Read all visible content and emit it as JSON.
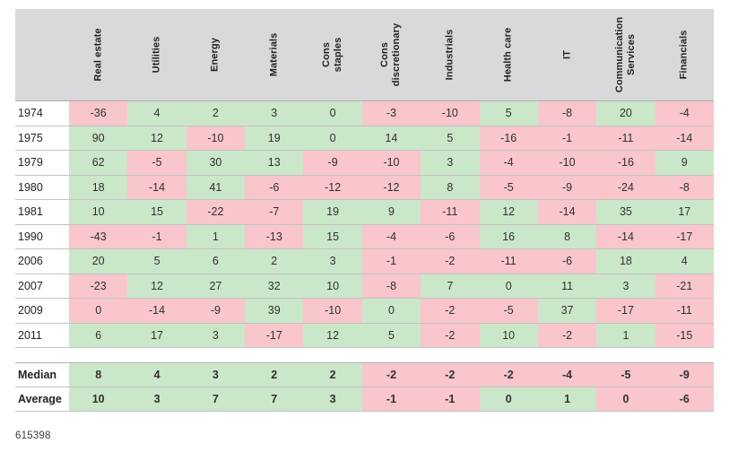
{
  "theme": {
    "positive_bg": "#cbe7ca",
    "negative_bg": "#f8c6cb",
    "header_bg": "#d9d9db",
    "grid_line": "#c2c2c4",
    "text_color": "#2e2e2e"
  },
  "footer": {
    "figure_number": "615398"
  },
  "chart_data": {
    "type": "table",
    "title": "",
    "legend": "green = highlighted positive, pink = highlighted negative",
    "columns": [
      "Real estate",
      "Utilities",
      "Energy",
      "Materials",
      "Cons staples",
      "Cons discretionary",
      "Industrials",
      "Health care",
      "IT",
      "Communication Services",
      "Financials"
    ],
    "column_labels_display": [
      "Real estate",
      "Utilities",
      "Energy",
      "Materials",
      "Cons\nstaples",
      "Cons\ndiscretionary",
      "Industrials",
      "Health care",
      "IT",
      "Communication\nServices",
      "Financials"
    ],
    "rows": [
      {
        "label": "1974",
        "values": [
          -36,
          4,
          2,
          3,
          0,
          -3,
          -10,
          5,
          -8,
          20,
          -4
        ],
        "colors": [
          "pink",
          "green",
          "green",
          "green",
          "green",
          "pink",
          "pink",
          "green",
          "pink",
          "green",
          "pink"
        ]
      },
      {
        "label": "1975",
        "values": [
          90,
          12,
          -10,
          19,
          0,
          14,
          5,
          -16,
          -1,
          -11,
          -14
        ],
        "colors": [
          "green",
          "green",
          "pink",
          "green",
          "green",
          "green",
          "green",
          "pink",
          "pink",
          "pink",
          "pink"
        ]
      },
      {
        "label": "1979",
        "values": [
          62,
          -5,
          30,
          13,
          -9,
          -10,
          3,
          -4,
          -10,
          -16,
          9
        ],
        "colors": [
          "green",
          "pink",
          "green",
          "green",
          "pink",
          "pink",
          "green",
          "pink",
          "pink",
          "pink",
          "green"
        ]
      },
      {
        "label": "1980",
        "values": [
          18,
          -14,
          41,
          -6,
          -12,
          -12,
          8,
          -5,
          -9,
          -24,
          -8
        ],
        "colors": [
          "green",
          "pink",
          "green",
          "pink",
          "pink",
          "pink",
          "green",
          "pink",
          "pink",
          "pink",
          "pink"
        ]
      },
      {
        "label": "1981",
        "values": [
          10,
          15,
          -22,
          -7,
          19,
          9,
          -11,
          12,
          -14,
          35,
          17
        ],
        "colors": [
          "green",
          "green",
          "pink",
          "pink",
          "green",
          "green",
          "pink",
          "green",
          "pink",
          "green",
          "green"
        ]
      },
      {
        "label": "1990",
        "values": [
          -43,
          -1,
          1,
          -13,
          15,
          -4,
          -6,
          16,
          8,
          -14,
          -17
        ],
        "colors": [
          "pink",
          "pink",
          "green",
          "pink",
          "green",
          "pink",
          "pink",
          "green",
          "green",
          "pink",
          "pink"
        ]
      },
      {
        "label": "2006",
        "values": [
          20,
          5,
          6,
          2,
          3,
          -1,
          -2,
          -11,
          -6,
          18,
          4
        ],
        "colors": [
          "green",
          "green",
          "green",
          "green",
          "green",
          "pink",
          "pink",
          "pink",
          "pink",
          "green",
          "green"
        ]
      },
      {
        "label": "2007",
        "values": [
          -23,
          12,
          27,
          32,
          10,
          -8,
          7,
          0,
          11,
          3,
          -21
        ],
        "colors": [
          "pink",
          "green",
          "green",
          "green",
          "green",
          "pink",
          "green",
          "green",
          "green",
          "green",
          "pink"
        ]
      },
      {
        "label": "2009",
        "values": [
          0,
          -14,
          -9,
          39,
          -10,
          0,
          -2,
          -5,
          37,
          -17,
          -11
        ],
        "colors": [
          "pink",
          "pink",
          "pink",
          "green",
          "pink",
          "green",
          "pink",
          "pink",
          "green",
          "pink",
          "pink"
        ]
      },
      {
        "label": "2011",
        "values": [
          6,
          17,
          3,
          -17,
          12,
          5,
          -2,
          10,
          -2,
          1,
          -15
        ],
        "colors": [
          "green",
          "green",
          "green",
          "pink",
          "green",
          "green",
          "pink",
          "green",
          "pink",
          "green",
          "pink"
        ]
      }
    ],
    "summary_rows": [
      {
        "label": "Median",
        "values": [
          8,
          4,
          3,
          2,
          2,
          -2,
          -2,
          -2,
          -4,
          -5,
          -9
        ],
        "colors": [
          "green",
          "green",
          "green",
          "green",
          "green",
          "pink",
          "pink",
          "pink",
          "pink",
          "pink",
          "pink"
        ]
      },
      {
        "label": "Average",
        "values": [
          10,
          3,
          7,
          7,
          3,
          -1,
          -1,
          0,
          1,
          0,
          -6
        ],
        "colors": [
          "green",
          "green",
          "green",
          "green",
          "green",
          "pink",
          "pink",
          "green",
          "green",
          "pink",
          "pink"
        ]
      }
    ]
  }
}
